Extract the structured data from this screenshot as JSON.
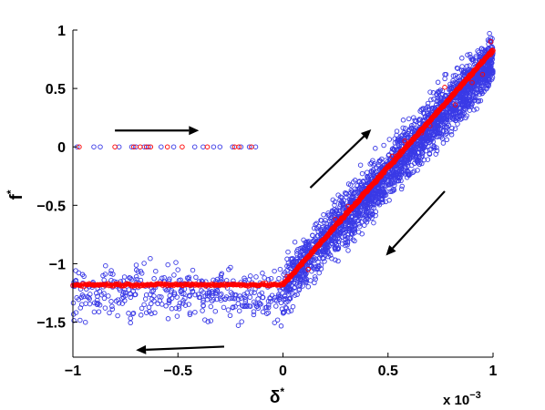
{
  "chart_data": {
    "type": "scatter",
    "title": "",
    "xlabel": "δ",
    "xlabel_superscript": "*",
    "ylabel": "f",
    "ylabel_superscript": "*",
    "x_multiplier_base": "x 10",
    "x_multiplier_exponent": "−3",
    "xlim": [
      -1,
      1
    ],
    "ylim": [
      -1.8,
      1
    ],
    "x_ticks": [
      -1,
      -0.5,
      0,
      0.5,
      1
    ],
    "x_tick_labels": [
      "−1",
      "−0.5",
      "0",
      "0.5",
      "1"
    ],
    "y_ticks": [
      -1.5,
      -1,
      -0.5,
      0,
      0.5,
      1
    ],
    "y_tick_labels": [
      "−1.5",
      "−1",
      "−0.5",
      "0",
      "0.5",
      "1"
    ],
    "grid": false,
    "legend": "none",
    "series": [
      {
        "color": "#3a3ae6",
        "marker": "open-circle",
        "regions": [
          {
            "kind": "zero-line",
            "x": [
              -0.98,
              -0.9,
              -0.87,
              -0.78,
              -0.72,
              -0.7,
              -0.66,
              -0.64,
              -0.58,
              -0.52,
              -0.42,
              -0.38,
              -0.33,
              -0.3,
              -0.24,
              -0.2,
              -0.16,
              -0.13
            ],
            "y": 0
          },
          {
            "kind": "cloud",
            "x_range": [
              -1,
              0.05
            ],
            "y_center": -1.25,
            "y_spread": 0.22,
            "count": 420
          },
          {
            "kind": "band",
            "x_range": [
              0,
              1
            ],
            "y_at_x0": -1.2,
            "y_at_x1": 0.75,
            "spread": 0.22,
            "count": 2400
          }
        ]
      },
      {
        "color": "#ff0000",
        "marker": "open-circle",
        "regions": [
          {
            "kind": "zero-line",
            "x": [
              -0.97,
              -0.8,
              -0.71,
              -0.68,
              -0.65,
              -0.63,
              -0.55,
              -0.48,
              -0.36,
              -0.23,
              -0.21,
              -0.15
            ],
            "y": 0
          },
          {
            "kind": "dense-line",
            "x_range": [
              -1,
              0
            ],
            "y": -1.18,
            "count": 170
          },
          {
            "kind": "dense-line",
            "x_range": [
              0,
              1
            ],
            "y_at_x0": -1.18,
            "y_at_x1": 0.83,
            "count": 420
          },
          {
            "kind": "scatter",
            "x": [
              0.02,
              0.12,
              0.25,
              0.31,
              0.38,
              0.47,
              0.52,
              0.58,
              0.66,
              0.7,
              0.77,
              0.82,
              0.9,
              0.95,
              0.99
            ],
            "y": [
              -1.11,
              -1.05,
              -0.62,
              -0.51,
              -0.41,
              -0.23,
              -0.08,
              0.05,
              0.12,
              0.18,
              0.51,
              0.36,
              0.55,
              0.62,
              0.9
            ]
          }
        ]
      }
    ],
    "trend_line": {
      "color": "#ff0000",
      "points": [
        [
          -1,
          -1.18
        ],
        [
          0,
          -1.18
        ],
        [
          1,
          0.83
        ]
      ]
    },
    "annotations": [
      {
        "type": "arrow",
        "from": [
          -0.8,
          0.14
        ],
        "to": [
          -0.4,
          0.14
        ]
      },
      {
        "type": "arrow",
        "from": [
          0.13,
          -0.35
        ],
        "to": [
          0.42,
          0.15
        ]
      },
      {
        "type": "arrow",
        "from": [
          0.77,
          -0.38
        ],
        "to": [
          0.49,
          -0.93
        ]
      },
      {
        "type": "arrow",
        "from": [
          -0.28,
          -1.71
        ],
        "to": [
          -0.7,
          -1.74
        ]
      }
    ]
  }
}
